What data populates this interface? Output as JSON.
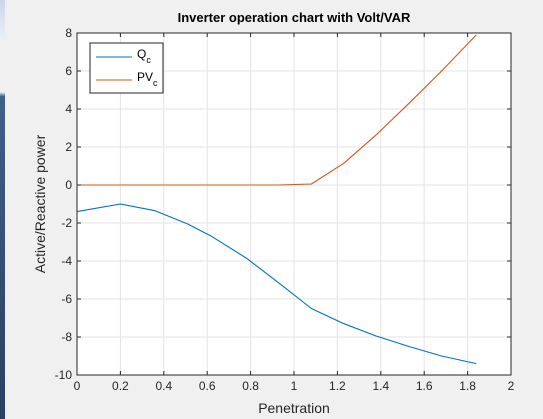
{
  "chart_data": {
    "type": "line",
    "title": "Inverter operation chart with Volt/VAR",
    "xlabel": "Penetration",
    "ylabel": "Active/Reactive power",
    "xlim": [
      0,
      2
    ],
    "ylim": [
      -10,
      8
    ],
    "xticks": [
      0,
      0.2,
      0.4,
      0.6,
      0.8,
      1,
      1.2,
      1.4,
      1.6,
      1.8,
      2
    ],
    "yticks": [
      -10,
      -8,
      -6,
      -4,
      -2,
      0,
      2,
      4,
      6,
      8
    ],
    "grid": true,
    "legend_position": "top-left",
    "series": [
      {
        "name": "Q",
        "name_subscript": "c",
        "color": "#0072BD",
        "x": [
          0,
          0.2,
          0.36,
          0.51,
          0.62,
          0.78,
          0.93,
          1.08,
          1.23,
          1.38,
          1.53,
          1.68,
          1.84
        ],
        "y": [
          -1.4,
          -1.0,
          -1.35,
          -2.05,
          -2.7,
          -3.85,
          -5.15,
          -6.5,
          -7.3,
          -7.95,
          -8.5,
          -9.0,
          -9.4
        ]
      },
      {
        "name": "PV",
        "name_subscript": "c",
        "color": "#D95319",
        "x": [
          0,
          0.2,
          0.36,
          0.51,
          0.62,
          0.78,
          0.93,
          1.08,
          1.23,
          1.38,
          1.53,
          1.68,
          1.84
        ],
        "y": [
          0,
          0,
          0,
          0,
          0,
          0,
          0,
          0.05,
          1.15,
          2.65,
          4.3,
          6.0,
          7.9
        ]
      }
    ]
  }
}
